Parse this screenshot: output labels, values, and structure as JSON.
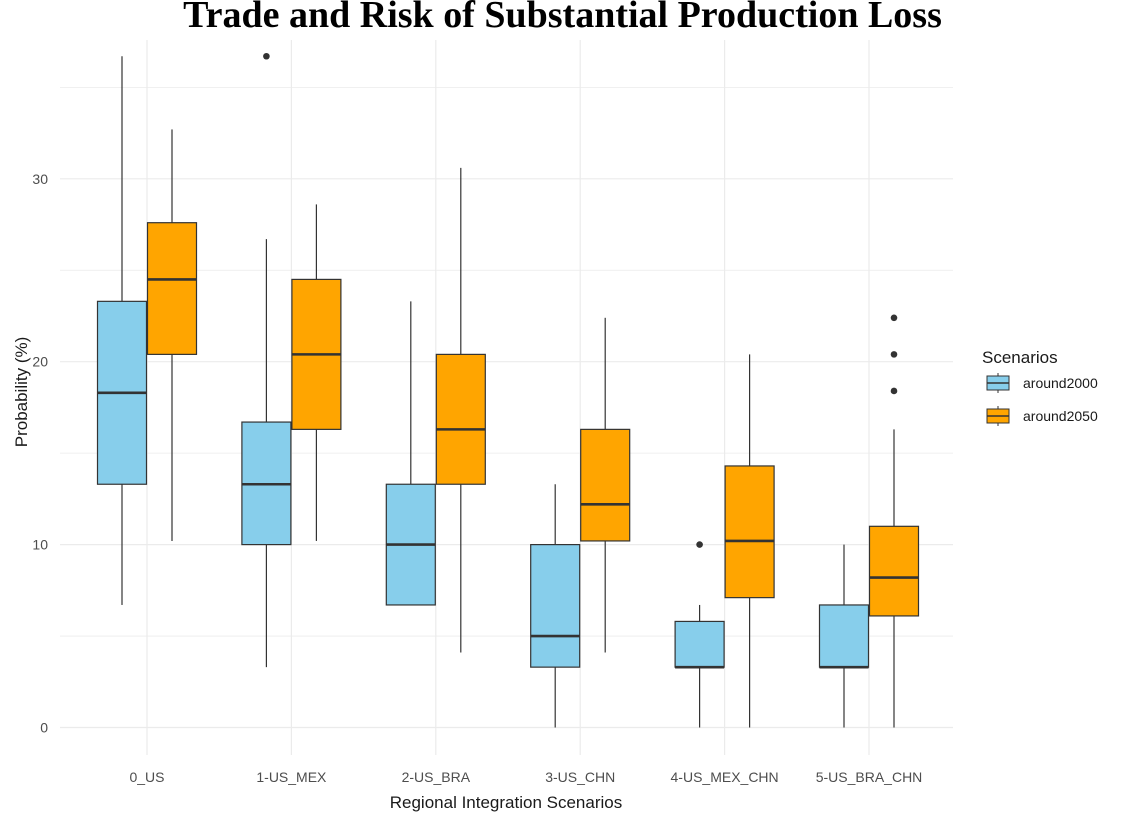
{
  "chart_data": {
    "type": "boxplot",
    "title": "Trade and Risk of Substantial Production Loss",
    "xlabel": "Regional Integration Scenarios",
    "ylabel": "Probability (%)",
    "ylim": [
      -1.5,
      37.5
    ],
    "yticks": [
      0,
      10,
      20,
      30
    ],
    "categories": [
      "0_US",
      "1-US_MEX",
      "2-US_BRA",
      "3-US_CHN",
      "4-US_MEX_CHN",
      "5-US_BRA_CHN"
    ],
    "legend": {
      "title": "Scenarios",
      "position": "right"
    },
    "series": [
      {
        "name": "around2000",
        "color": "#87ceeb",
        "boxes": [
          {
            "whisker_low": 6.7,
            "q1": 13.3,
            "median": 18.3,
            "q3": 23.3,
            "whisker_high": 36.7,
            "outliers": []
          },
          {
            "whisker_low": 3.3,
            "q1": 10.0,
            "median": 13.3,
            "q3": 16.7,
            "whisker_high": 26.7,
            "outliers": [
              36.7
            ]
          },
          {
            "whisker_low": 6.7,
            "q1": 6.7,
            "median": 10.0,
            "q3": 13.3,
            "whisker_high": 23.3,
            "outliers": []
          },
          {
            "whisker_low": 0.0,
            "q1": 3.3,
            "median": 5.0,
            "q3": 10.0,
            "whisker_high": 13.3,
            "outliers": []
          },
          {
            "whisker_low": 0.0,
            "q1": 3.3,
            "median": 3.3,
            "q3": 5.8,
            "whisker_high": 6.7,
            "outliers": [
              10.0
            ]
          },
          {
            "whisker_low": 0.0,
            "q1": 3.3,
            "median": 3.3,
            "q3": 6.7,
            "whisker_high": 10.0,
            "outliers": []
          }
        ]
      },
      {
        "name": "around2050",
        "color": "#ffa500",
        "boxes": [
          {
            "whisker_low": 10.2,
            "q1": 20.4,
            "median": 24.5,
            "q3": 27.6,
            "whisker_high": 32.7,
            "outliers": []
          },
          {
            "whisker_low": 10.2,
            "q1": 16.3,
            "median": 20.4,
            "q3": 24.5,
            "whisker_high": 28.6,
            "outliers": []
          },
          {
            "whisker_low": 4.1,
            "q1": 13.3,
            "median": 16.3,
            "q3": 20.4,
            "whisker_high": 30.6,
            "outliers": []
          },
          {
            "whisker_low": 4.1,
            "q1": 10.2,
            "median": 12.2,
            "q3": 16.3,
            "whisker_high": 22.4,
            "outliers": []
          },
          {
            "whisker_low": 0.0,
            "q1": 7.1,
            "median": 10.2,
            "q3": 14.3,
            "whisker_high": 20.4,
            "outliers": []
          },
          {
            "whisker_low": 0.0,
            "q1": 6.1,
            "median": 8.2,
            "q3": 11.0,
            "whisker_high": 16.3,
            "outliers": [
              18.4,
              20.4,
              22.4
            ]
          }
        ]
      }
    ]
  }
}
